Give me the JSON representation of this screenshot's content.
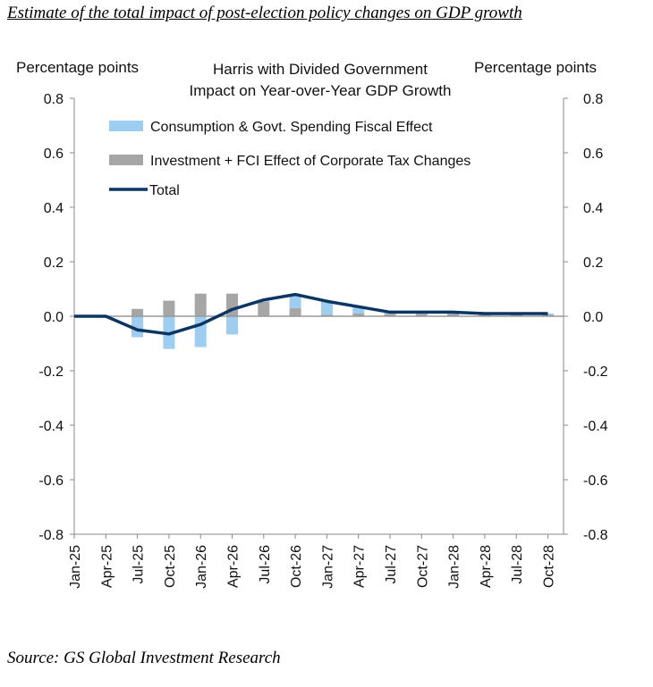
{
  "header": "Estimate of the total impact of post-election policy changes on GDP growth",
  "source": "Source: GS Global Investment Research",
  "chart_data": {
    "type": "bar",
    "title": "Harris with Divided Government",
    "subtitle": "Impact on Year-over-Year  GDP Growth",
    "ylabel_left": "Percentage  points",
    "ylabel_right": "Percentage  points",
    "ylim": [
      -0.8,
      0.8
    ],
    "yticks": [
      "0.8",
      "0.6",
      "0.4",
      "0.2",
      "0.0",
      "-0.2",
      "-0.4",
      "-0.6",
      "-0.8"
    ],
    "categories": [
      "Jan-25",
      "Apr-25",
      "Jul-25",
      "Oct-25",
      "Jan-26",
      "Apr-26",
      "Jul-26",
      "Oct-26",
      "Jan-27",
      "Apr-27",
      "Jul-27",
      "Oct-27",
      "Jan-28",
      "Apr-28",
      "Jul-28",
      "Oct-28"
    ],
    "legend_position": "top-left",
    "series": [
      {
        "name": "Consumption & Govt. Spending Fiscal Effect",
        "kind": "bar",
        "color": "#9dcdf0",
        "values": [
          0,
          0,
          -0.077,
          -0.12,
          -0.113,
          -0.067,
          0.007,
          0.05,
          0.05,
          0.025,
          0.008,
          0.008,
          0.008,
          0.005,
          0.005,
          0.005
        ]
      },
      {
        "name": "Investment + FCI Effect of Corporate Tax Changes",
        "kind": "bar",
        "color": "#a6a6a6",
        "values": [
          0,
          0,
          0.027,
          0.057,
          0.083,
          0.083,
          0.053,
          0.03,
          0.005,
          0.01,
          0.008,
          0.008,
          0.008,
          0.005,
          0.005,
          0.005
        ]
      },
      {
        "name": "Total",
        "kind": "line",
        "color": "#0b3563",
        "values": [
          0,
          0,
          -0.05,
          -0.065,
          -0.03,
          0.025,
          0.06,
          0.08,
          0.055,
          0.035,
          0.015,
          0.015,
          0.015,
          0.01,
          0.01,
          0.01
        ]
      }
    ]
  }
}
